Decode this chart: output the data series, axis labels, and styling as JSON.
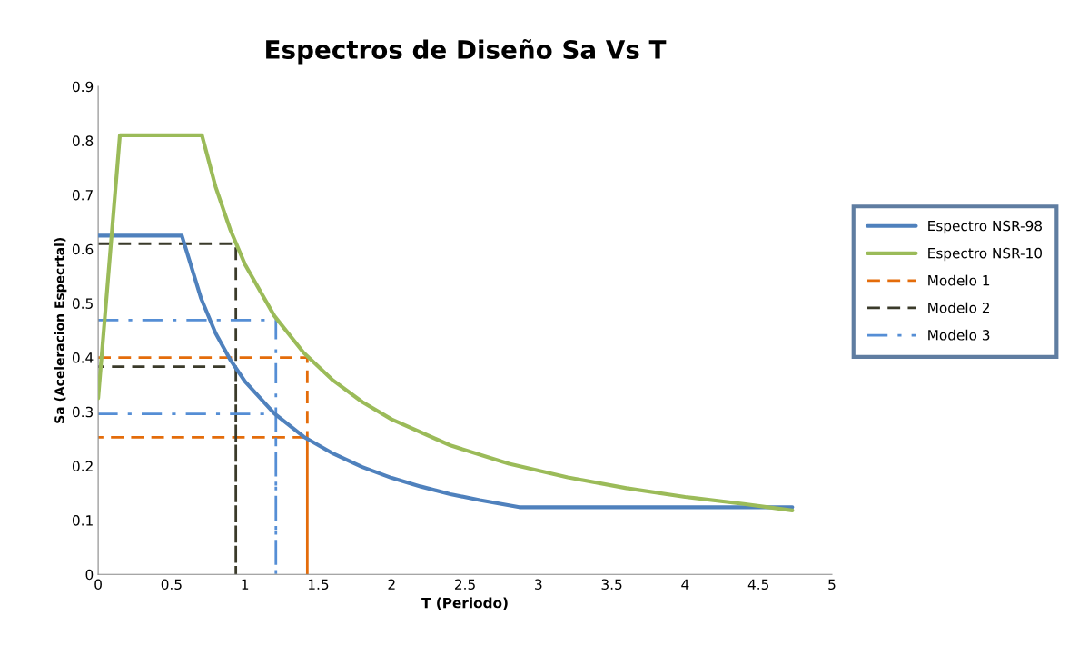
{
  "chart_data": {
    "type": "line",
    "title": "Espectros de Diseño Sa Vs T",
    "xlabel": "T (Periodo)",
    "ylabel": "Sa (Aceleracion Especrtal)",
    "xlim": [
      0,
      5
    ],
    "xticks": [
      0,
      0.5,
      1,
      1.5,
      2,
      2.5,
      3,
      3.5,
      4,
      4.5,
      5
    ],
    "ylim": [
      0,
      0.9
    ],
    "yticks": [
      0,
      0.1,
      0.2,
      0.3,
      0.4,
      0.5,
      0.6,
      0.7,
      0.8,
      0.9
    ],
    "grid": false,
    "legend": "right",
    "marker": "none",
    "series": [
      {
        "name": "Espectro NSR-98",
        "color": "#4f81bd",
        "line_style": "solid",
        "x": [
          0,
          0.57,
          0.7,
          0.8,
          0.9,
          1.0,
          1.2,
          1.4,
          1.6,
          1.8,
          2.0,
          2.2,
          2.4,
          2.6,
          2.87,
          4.73
        ],
        "values": [
          0.625,
          0.625,
          0.51,
          0.445,
          0.396,
          0.356,
          0.297,
          0.254,
          0.223,
          0.198,
          0.178,
          0.162,
          0.148,
          0.137,
          0.124,
          0.124
        ]
      },
      {
        "name": "Espectro NSR-10",
        "color": "#9bbb59",
        "line_style": "solid",
        "x": [
          0,
          0.148,
          0.707,
          0.8,
          0.9,
          1.0,
          1.2,
          1.4,
          1.6,
          1.8,
          2.0,
          2.4,
          2.8,
          3.2,
          3.6,
          4.0,
          4.4,
          4.73
        ],
        "values": [
          0.325,
          0.81,
          0.81,
          0.715,
          0.636,
          0.572,
          0.477,
          0.409,
          0.358,
          0.318,
          0.286,
          0.238,
          0.204,
          0.179,
          0.159,
          0.143,
          0.13,
          0.118
        ]
      },
      {
        "name": "Modelo 1",
        "color": "#e46c0a",
        "line_style": "dashed",
        "x": [
          0,
          1.425,
          1.425,
          1.425,
          0
        ],
        "values": [
          0.4,
          0.4,
          0,
          0.253,
          0.253
        ]
      },
      {
        "name": "Modelo 2",
        "color": "#3a3a2a",
        "line_style": "dashed",
        "x": [
          0,
          0.938,
          0.938,
          0.938,
          0
        ],
        "values": [
          0.61,
          0.61,
          0,
          0.383,
          0.383
        ]
      },
      {
        "name": "Modelo 3",
        "color": "#558ed5",
        "line_style": "dashdot",
        "x": [
          0,
          1.211,
          1.211,
          1.211,
          0
        ],
        "values": [
          0.469,
          0.469,
          0,
          0.296,
          0.296
        ]
      }
    ]
  }
}
